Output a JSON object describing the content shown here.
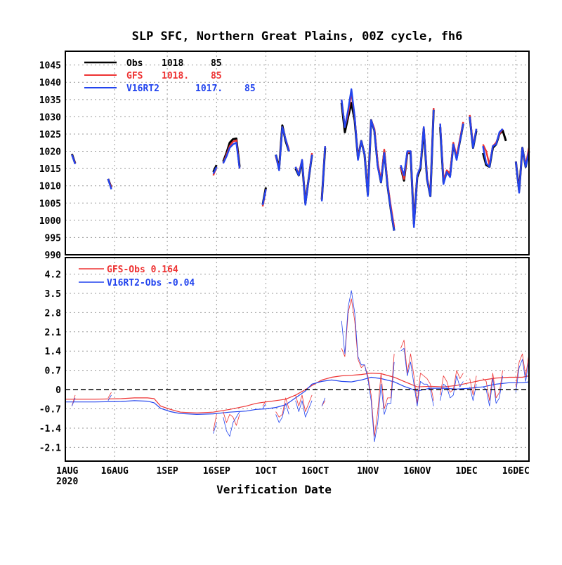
{
  "chart_data": [
    {
      "type": "line",
      "title": "SLP SFC, Northern Great Plains, 00Z cycle, fh6",
      "xlabel": "",
      "ylabel": "",
      "xlim": [
        "2020-08-01",
        "2020-12-20"
      ],
      "ylim": [
        990,
        1049
      ],
      "y_ticks": [
        "990",
        "995",
        "1000",
        "1005",
        "1010",
        "1015",
        "1020",
        "1025",
        "1030",
        "1035",
        "1040",
        "1045"
      ],
      "grid": true,
      "legend_placement": "top-left",
      "legend": [
        {
          "label": "Obs",
          "col1": "1018",
          "col2": "85",
          "color": "#000000"
        },
        {
          "label": "GFS",
          "col1": "1018.",
          "col2": "85",
          "color": "#ee3333"
        },
        {
          "label": "V16RT2",
          "col1": "1017.",
          "col2": "85",
          "color": "#2244ee"
        }
      ],
      "x": [
        "2020-08-03",
        "2020-08-04",
        "2020-08-14",
        "2020-08-15",
        "2020-09-15",
        "2020-09-16",
        "2020-09-18",
        "2020-09-19",
        "2020-09-20",
        "2020-09-21",
        "2020-09-22",
        "2020-09-23",
        "2020-09-30",
        "2020-10-01",
        "2020-10-04",
        "2020-10-05",
        "2020-10-06",
        "2020-10-07",
        "2020-10-08",
        "2020-10-10",
        "2020-10-11",
        "2020-10-12",
        "2020-10-13",
        "2020-10-14",
        "2020-10-15",
        "2020-10-18",
        "2020-10-19",
        "2020-10-20",
        "2020-10-24",
        "2020-10-25",
        "2020-10-26",
        "2020-10-27",
        "2020-10-28",
        "2020-10-29",
        "2020-10-30",
        "2020-10-31",
        "2020-11-01",
        "2020-11-02",
        "2020-11-03",
        "2020-11-04",
        "2020-11-05",
        "2020-11-06",
        "2020-11-07",
        "2020-11-08",
        "2020-11-09",
        "2020-11-11",
        "2020-11-12",
        "2020-11-13",
        "2020-11-14",
        "2020-11-15",
        "2020-11-16",
        "2020-11-17",
        "2020-11-18",
        "2020-11-19",
        "2020-11-20",
        "2020-11-21",
        "2020-11-23",
        "2020-11-24",
        "2020-11-25",
        "2020-11-26",
        "2020-11-27",
        "2020-11-28",
        "2020-11-29",
        "2020-11-30",
        "2020-12-02",
        "2020-12-03",
        "2020-12-04",
        "2020-12-06",
        "2020-12-07",
        "2020-12-08",
        "2020-12-09",
        "2020-12-10",
        "2020-12-11",
        "2020-12-12",
        "2020-12-13",
        "2020-12-16",
        "2020-12-17",
        "2020-12-18",
        "2020-12-19",
        "2020-12-20"
      ],
      "series": [
        {
          "name": "Obs",
          "color": "#000000",
          "values": [
            1019.2,
            1016.5,
            1012,
            1009.5,
            1014,
            1016,
            1017,
            1019.5,
            1022.5,
            1023.5,
            1023.7,
            1015.5,
            1004.5,
            1009.5,
            1019,
            1015,
            1027.5,
            1023,
            1020,
            1015,
            1013,
            1017,
            1005,
            1012,
            1019,
            1006,
            1021,
            null,
            1034,
            1025.5,
            1030,
            1034,
            1029,
            1018,
            1023,
            1019,
            1007.5,
            1029,
            1026,
            1016,
            1011,
            1020,
            1010,
            1003,
            997,
            1015.5,
            1011.5,
            1019.5,
            1019.5,
            999,
            1012.5,
            1015,
            1026.5,
            1012,
            1007,
            1032,
            1027,
            1011,
            1014,
            1013,
            1022,
            1018,
            1023,
            1028,
            1030,
            1021,
            1026,
            1019.5,
            1016,
            1015.5,
            1021,
            1022,
            1025,
            1026,
            1023,
            1017,
            1008.5,
            1021,
            1015.5,
            1020
          ]
        },
        {
          "name": "GFS",
          "color": "#ee3333",
          "values": [
            1019,
            1016.5,
            1012,
            1009.5,
            1013,
            1015.5,
            1016.5,
            1019,
            1021.5,
            1022.8,
            1023.2,
            1015,
            1004,
            1009,
            1018.5,
            1015,
            1027,
            1023.5,
            1020.5,
            1015.5,
            1013.5,
            1017.5,
            1005,
            1012,
            1019.5,
            1006,
            1021.5,
            null,
            1035,
            1027,
            1031,
            1037,
            1030,
            1018,
            1023,
            1019,
            1008,
            1029,
            1026.5,
            1016.5,
            1011.5,
            1020.5,
            1010.5,
            1004,
            998,
            1015.5,
            1012,
            1019.5,
            1020,
            999,
            1013,
            1015.5,
            1027,
            1012.5,
            1007.5,
            1032.5,
            1028,
            1011.5,
            1014.5,
            1013.5,
            1022.5,
            1018.5,
            1023.5,
            1028.5,
            1030.5,
            1021.5,
            1026.5,
            1022,
            1020,
            1016,
            1021.5,
            1022.5,
            1025,
            1026.5,
            null,
            1017,
            1008.5,
            1021,
            1016,
            1021
          ]
        },
        {
          "name": "V16RT2",
          "color": "#2244ee",
          "values": [
            1019,
            1016.3,
            1012,
            1009,
            1013.5,
            1015.5,
            1016.5,
            1018.5,
            1021,
            1022,
            1022.5,
            1015,
            1004.5,
            1009,
            1019,
            1014.5,
            1027,
            1023.5,
            1020,
            1015.5,
            1013,
            1017.5,
            1004.5,
            1012,
            1019,
            1005.5,
            1021.5,
            null,
            1035,
            1027,
            1032,
            1038,
            1030,
            1017.5,
            1023,
            1019,
            1007,
            1029,
            1026,
            1015.5,
            1011,
            1019.5,
            1010,
            1003,
            997,
            1016,
            1013,
            1020,
            1020,
            998,
            1013,
            1015.5,
            1027,
            1012,
            1007,
            1032,
            1028,
            1010.5,
            1014,
            1012.5,
            1022,
            1017.5,
            1023,
            1028,
            1030,
            1021,
            1026.5,
            1021.5,
            1016.5,
            1015.5,
            1021.5,
            1022,
            1025.5,
            1026.5,
            null,
            1017,
            1008,
            1021,
            1015.5,
            1020
          ]
        }
      ]
    },
    {
      "type": "line",
      "title": "",
      "xlabel": "Verification Date",
      "ylabel": "",
      "xlim": [
        "2020-08-01",
        "2020-12-20"
      ],
      "ylim": [
        -2.6,
        4.8
      ],
      "y_ticks": [
        "-2.1",
        "-1.4",
        "-0.7",
        "0",
        "0.7",
        "1.4",
        "2.1",
        "2.8",
        "3.5",
        "4.2"
      ],
      "x_ticks": [
        "1AUG",
        "16AUG",
        "1SEP",
        "16SEP",
        "1OCT",
        "16OCT",
        "1NOV",
        "16NOV",
        "1DEC",
        "16DEC"
      ],
      "x_tick_year": "2020",
      "grid": true,
      "legend_placement": "top-left",
      "legend": [
        {
          "label": "GFS-Obs",
          "value": "0.164",
          "color": "#ee3333"
        },
        {
          "label": "V16RT2-Obs",
          "value": "-0.04",
          "color": "#2244ee"
        }
      ],
      "zero_line": true,
      "series": [
        {
          "name": "GFS-Obs running mean",
          "color": "#ee3333",
          "lw": 1.2,
          "x": [
            "2020-08-01",
            "2020-08-10",
            "2020-08-18",
            "2020-08-22",
            "2020-08-26",
            "2020-08-28",
            "2020-08-30",
            "2020-09-02",
            "2020-09-05",
            "2020-09-10",
            "2020-09-15",
            "2020-09-20",
            "2020-09-25",
            "2020-09-28",
            "2020-10-01",
            "2020-10-04",
            "2020-10-07",
            "2020-10-10",
            "2020-10-13",
            "2020-10-15",
            "2020-10-18",
            "2020-10-21",
            "2020-10-24",
            "2020-10-27",
            "2020-10-30",
            "2020-11-02",
            "2020-11-05",
            "2020-11-09",
            "2020-11-12",
            "2020-11-16",
            "2020-11-20",
            "2020-11-24",
            "2020-11-28",
            "2020-12-02",
            "2020-12-06",
            "2020-12-10",
            "2020-12-14",
            "2020-12-18",
            "2020-12-20"
          ],
          "values": [
            -0.35,
            -0.35,
            -0.33,
            -0.3,
            -0.3,
            -0.33,
            -0.6,
            -0.72,
            -0.82,
            -0.85,
            -0.82,
            -0.72,
            -0.6,
            -0.5,
            -0.45,
            -0.4,
            -0.35,
            -0.2,
            0.0,
            0.15,
            0.35,
            0.45,
            0.5,
            0.52,
            0.55,
            0.6,
            0.58,
            0.45,
            0.3,
            0.1,
            0.12,
            0.1,
            0.15,
            0.25,
            0.35,
            0.42,
            0.45,
            0.45,
            0.5
          ]
        },
        {
          "name": "V16RT2-Obs running mean",
          "color": "#2244ee",
          "lw": 1.2,
          "x": [
            "2020-08-01",
            "2020-08-10",
            "2020-08-18",
            "2020-08-22",
            "2020-08-26",
            "2020-08-28",
            "2020-08-30",
            "2020-09-02",
            "2020-09-05",
            "2020-09-10",
            "2020-09-15",
            "2020-09-20",
            "2020-09-25",
            "2020-09-28",
            "2020-10-01",
            "2020-10-04",
            "2020-10-07",
            "2020-10-10",
            "2020-10-13",
            "2020-10-15",
            "2020-10-18",
            "2020-10-21",
            "2020-10-24",
            "2020-10-27",
            "2020-10-30",
            "2020-11-02",
            "2020-11-05",
            "2020-11-09",
            "2020-11-12",
            "2020-11-16",
            "2020-11-20",
            "2020-11-24",
            "2020-11-28",
            "2020-12-02",
            "2020-12-06",
            "2020-12-10",
            "2020-12-14",
            "2020-12-18",
            "2020-12-20"
          ],
          "values": [
            -0.45,
            -0.45,
            -0.43,
            -0.4,
            -0.42,
            -0.48,
            -0.68,
            -0.8,
            -0.87,
            -0.9,
            -0.88,
            -0.82,
            -0.78,
            -0.72,
            -0.7,
            -0.65,
            -0.55,
            -0.3,
            -0.05,
            0.2,
            0.3,
            0.35,
            0.3,
            0.28,
            0.35,
            0.45,
            0.4,
            0.28,
            0.12,
            -0.05,
            0.05,
            0.05,
            0.02,
            0.05,
            0.1,
            0.2,
            0.25,
            0.25,
            0.28
          ]
        },
        {
          "name": "GFS-Obs daily",
          "color": "#ee3333",
          "lw": 0.8,
          "x": [
            "2020-08-03",
            "2020-08-04",
            "2020-08-14",
            "2020-08-15",
            "2020-09-15",
            "2020-09-16",
            "2020-09-18",
            "2020-09-19",
            "2020-09-20",
            "2020-09-21",
            "2020-09-22",
            "2020-09-23",
            "2020-09-30",
            "2020-10-01",
            "2020-10-04",
            "2020-10-05",
            "2020-10-06",
            "2020-10-07",
            "2020-10-08",
            "2020-10-10",
            "2020-10-11",
            "2020-10-12",
            "2020-10-13",
            "2020-10-14",
            "2020-10-15",
            "2020-10-18",
            "2020-10-19",
            "2020-10-24",
            "2020-10-25",
            "2020-10-26",
            "2020-10-27",
            "2020-10-28",
            "2020-10-29",
            "2020-10-30",
            "2020-10-31",
            "2020-11-01",
            "2020-11-02",
            "2020-11-03",
            "2020-11-04",
            "2020-11-05",
            "2020-11-06",
            "2020-11-07",
            "2020-11-08",
            "2020-11-09",
            "2020-11-11",
            "2020-11-12",
            "2020-11-13",
            "2020-11-14",
            "2020-11-15",
            "2020-11-16",
            "2020-11-17",
            "2020-11-18",
            "2020-11-19",
            "2020-11-20",
            "2020-11-21",
            "2020-11-23",
            "2020-11-24",
            "2020-11-25",
            "2020-11-26",
            "2020-11-27",
            "2020-11-28",
            "2020-11-29",
            "2020-11-30",
            "2020-12-02",
            "2020-12-03",
            "2020-12-04",
            "2020-12-06",
            "2020-12-07",
            "2020-12-08",
            "2020-12-09",
            "2020-12-10",
            "2020-12-11",
            "2020-12-12",
            "2020-12-16",
            "2020-12-17",
            "2020-12-18",
            "2020-12-19",
            "2020-12-20"
          ],
          "values": [
            -0.6,
            -0.2,
            -0.3,
            -0.1,
            -1.5,
            -0.9,
            -0.8,
            -1.2,
            -0.9,
            -1.0,
            -1.3,
            -0.9,
            -0.6,
            -0.4,
            -0.8,
            -1.0,
            -0.9,
            -0.3,
            -0.7,
            -0.2,
            -0.6,
            -0.2,
            -0.8,
            -0.5,
            -0.2,
            -0.6,
            -0.4,
            1.5,
            1.2,
            2.8,
            3.3,
            2.5,
            1.1,
            0.8,
            0.9,
            0.5,
            -0.2,
            -1.7,
            -0.8,
            0.6,
            -0.7,
            -0.3,
            -0.3,
            1.3,
            1.5,
            1.8,
            0.6,
            1.3,
            0.5,
            -0.5,
            0.6,
            0.5,
            0.4,
            0.2,
            -0.4,
            -0.2,
            0.5,
            0.3,
            -0.1,
            0.0,
            0.7,
            0.4,
            0.6,
            0.4,
            -0.2,
            0.5,
            0.4,
            0.3,
            -0.4,
            0.6,
            -0.3,
            -0.1,
            0.7,
            0.1,
            1.0,
            1.3,
            0.5,
            1.3
          ]
        },
        {
          "name": "V16RT2-Obs daily",
          "color": "#2244ee",
          "lw": 0.8,
          "x": [
            "2020-08-03",
            "2020-08-04",
            "2020-08-14",
            "2020-08-15",
            "2020-09-15",
            "2020-09-16",
            "2020-09-18",
            "2020-09-19",
            "2020-09-20",
            "2020-09-21",
            "2020-09-22",
            "2020-09-23",
            "2020-09-30",
            "2020-10-01",
            "2020-10-04",
            "2020-10-05",
            "2020-10-06",
            "2020-10-07",
            "2020-10-08",
            "2020-10-10",
            "2020-10-11",
            "2020-10-12",
            "2020-10-13",
            "2020-10-14",
            "2020-10-15",
            "2020-10-18",
            "2020-10-19",
            "2020-10-24",
            "2020-10-25",
            "2020-10-26",
            "2020-10-27",
            "2020-10-28",
            "2020-10-29",
            "2020-10-30",
            "2020-10-31",
            "2020-11-01",
            "2020-11-02",
            "2020-11-03",
            "2020-11-04",
            "2020-11-05",
            "2020-11-06",
            "2020-11-07",
            "2020-11-08",
            "2020-11-09",
            "2020-11-11",
            "2020-11-12",
            "2020-11-13",
            "2020-11-14",
            "2020-11-15",
            "2020-11-16",
            "2020-11-17",
            "2020-11-18",
            "2020-11-19",
            "2020-11-20",
            "2020-11-21",
            "2020-11-23",
            "2020-11-24",
            "2020-11-25",
            "2020-11-26",
            "2020-11-27",
            "2020-11-28",
            "2020-11-29",
            "2020-11-30",
            "2020-12-02",
            "2020-12-03",
            "2020-12-04",
            "2020-12-06",
            "2020-12-07",
            "2020-12-08",
            "2020-12-09",
            "2020-12-10",
            "2020-12-11",
            "2020-12-12",
            "2020-12-16",
            "2020-12-17",
            "2020-12-18",
            "2020-12-19",
            "2020-12-20"
          ],
          "values": [
            -0.6,
            -0.3,
            -0.4,
            -0.2,
            -1.6,
            -1.2,
            -1.0,
            -1.5,
            -1.7,
            -1.2,
            -1.0,
            -0.8,
            -0.7,
            -0.5,
            -0.9,
            -1.2,
            -1.0,
            -0.5,
            -0.9,
            -0.4,
            -0.8,
            -0.4,
            -1.0,
            -0.7,
            -0.4,
            -0.6,
            -0.3,
            2.5,
            1.3,
            3.0,
            3.6,
            2.8,
            1.2,
            0.9,
            0.9,
            0.4,
            -0.4,
            -1.9,
            -1.2,
            0.2,
            -0.9,
            -0.5,
            -0.5,
            1.0,
            1.4,
            1.5,
            0.5,
            1.0,
            0.2,
            -0.6,
            0.3,
            0.2,
            0.2,
            0.0,
            -0.6,
            -0.4,
            0.2,
            0.1,
            -0.3,
            -0.2,
            0.5,
            0.1,
            0.3,
            0.1,
            -0.4,
            0.2,
            0.1,
            0.0,
            -0.6,
            0.4,
            -0.5,
            -0.3,
            0.5,
            -0.1,
            0.8,
            1.1,
            0.3,
            1.1
          ]
        }
      ]
    }
  ]
}
